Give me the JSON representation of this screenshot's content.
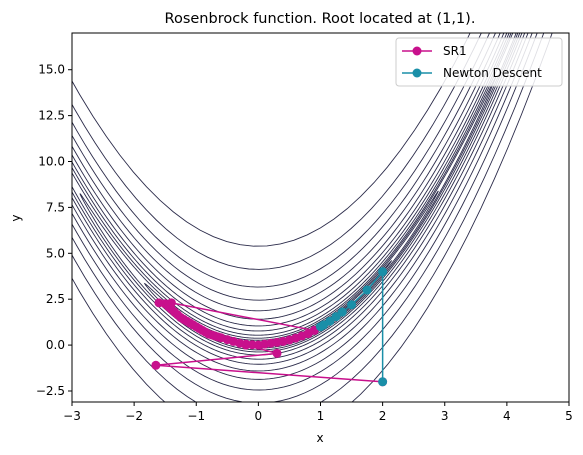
{
  "chart_data": {
    "type": "line",
    "title": "Rosenbrock function. Root located at (1,1).",
    "xlabel": "x",
    "ylabel": "y",
    "xlim": [
      -3,
      5
    ],
    "ylim": [
      -3.1,
      17
    ],
    "xticks": [
      -3,
      -2,
      -1,
      0,
      1,
      2,
      3,
      4,
      5
    ],
    "yticks": [
      -2.5,
      0.0,
      2.5,
      5.0,
      7.5,
      10.0,
      12.5,
      15.0
    ],
    "xtick_labels": [
      "−3",
      "−2",
      "−1",
      "0",
      "1",
      "2",
      "3",
      "4",
      "5"
    ],
    "ytick_labels": [
      "−2.5",
      "0.0",
      "2.5",
      "5.0",
      "7.5",
      "10.0",
      "12.5",
      "15.0"
    ],
    "grid": false,
    "legend_position": "top-right",
    "contour": {
      "function": "Rosenbrock",
      "color": "#2b2b4a",
      "levels": [
        0.3,
        1.3,
        3.6,
        8,
        15,
        30,
        60,
        110,
        200,
        350,
        600,
        1000,
        1700,
        2900
      ]
    },
    "series": [
      {
        "name": "SR1",
        "color": "#c8108c",
        "marker": "circle",
        "points": [
          [
            2.0,
            -2.0
          ],
          [
            -1.65,
            -1.1
          ],
          [
            0.3,
            -0.45
          ],
          [
            -0.2,
            0.0
          ],
          [
            -0.1,
            0.02
          ],
          [
            0.0,
            0.0
          ],
          [
            0.1,
            0.05
          ],
          [
            0.2,
            0.1
          ],
          [
            0.3,
            0.15
          ],
          [
            0.4,
            0.2
          ],
          [
            0.5,
            0.28
          ],
          [
            0.6,
            0.38
          ],
          [
            0.7,
            0.5
          ],
          [
            0.8,
            0.62
          ],
          [
            0.9,
            0.8
          ],
          [
            -1.4,
            2.3
          ],
          [
            -1.6,
            2.3
          ],
          [
            -1.5,
            2.25
          ],
          [
            -1.45,
            2.1
          ],
          [
            -1.4,
            1.95
          ],
          [
            -1.35,
            1.8
          ],
          [
            -1.3,
            1.65
          ],
          [
            -1.25,
            1.5
          ],
          [
            -1.2,
            1.4
          ],
          [
            -1.15,
            1.3
          ],
          [
            -1.1,
            1.2
          ],
          [
            -1.05,
            1.1
          ],
          [
            -1.0,
            1.0
          ],
          [
            -0.95,
            0.9
          ],
          [
            -0.9,
            0.8
          ],
          [
            -0.85,
            0.7
          ],
          [
            -0.8,
            0.6
          ],
          [
            -0.75,
            0.55
          ],
          [
            -0.7,
            0.5
          ],
          [
            -0.65,
            0.45
          ],
          [
            -0.6,
            0.4
          ],
          [
            -0.5,
            0.3
          ],
          [
            -0.4,
            0.2
          ],
          [
            -0.3,
            0.1
          ],
          [
            -0.2,
            0.05
          ],
          [
            0.0,
            0.0
          ]
        ]
      },
      {
        "name": "Newton Descent",
        "color": "#1a8fa8",
        "marker": "circle",
        "points": [
          [
            2.0,
            -2.0
          ],
          [
            2.0,
            4.0
          ],
          [
            1.75,
            3.0
          ],
          [
            1.5,
            2.2
          ],
          [
            1.35,
            1.8
          ],
          [
            1.25,
            1.55
          ],
          [
            1.15,
            1.3
          ],
          [
            1.05,
            1.1
          ],
          [
            1.0,
            1.0
          ]
        ]
      }
    ]
  }
}
